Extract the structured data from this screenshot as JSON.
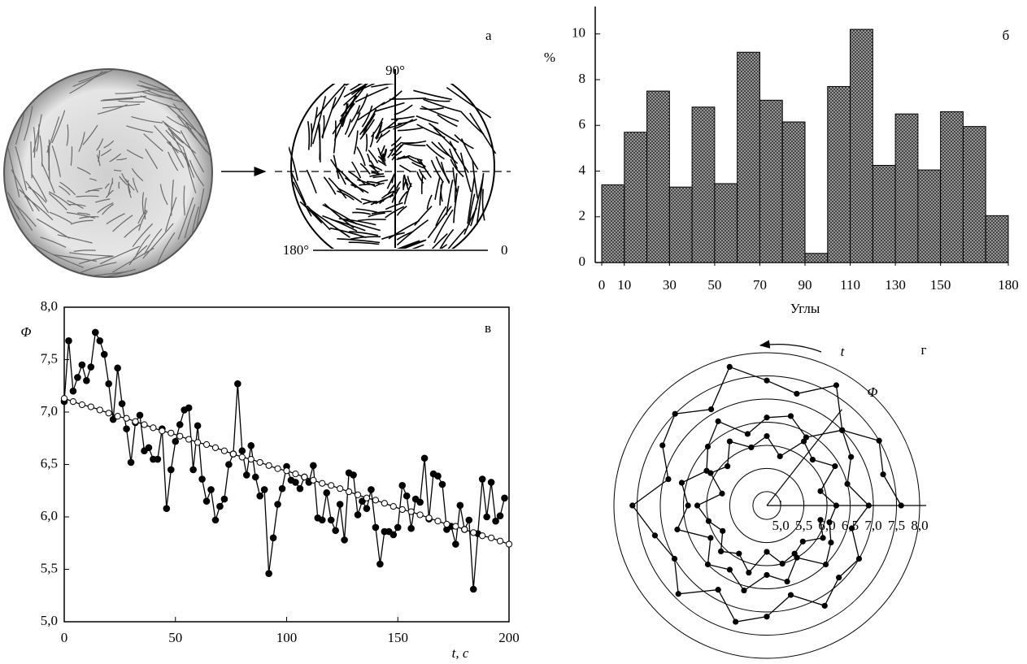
{
  "panel_a": {
    "label": "а",
    "angle_90": "90°",
    "angle_180": "180°",
    "angle_0": "0"
  },
  "chart_data": [
    {
      "type": "histogram",
      "label": "б",
      "ylabel": "%",
      "xlabel": "Углы",
      "bins": [
        0,
        10,
        20,
        30,
        40,
        50,
        60,
        70,
        80,
        90,
        100,
        110,
        120,
        130,
        140,
        150,
        160,
        170,
        180
      ],
      "values": [
        3.4,
        5.7,
        7.5,
        3.3,
        6.8,
        3.45,
        9.2,
        7.1,
        6.15,
        0.4,
        7.7,
        10.2,
        4.25,
        6.5,
        4.05,
        6.6,
        5.95,
        2.05
      ],
      "color": "#a8a8a8",
      "xlim": [
        0,
        180
      ],
      "ylim": [
        0,
        11.2
      ],
      "xticks": [
        0,
        10,
        30,
        50,
        70,
        90,
        110,
        130,
        150,
        180
      ],
      "yticks": [
        0,
        2,
        4,
        6,
        8,
        10
      ]
    },
    {
      "type": "line",
      "label": "в",
      "ylabel": "Φ",
      "xlabel": "t, c",
      "xlim": [
        0,
        200
      ],
      "ylim": [
        5,
        8
      ],
      "xticks": [
        0,
        50,
        100,
        150,
        200
      ],
      "yticks": [
        {
          "value": 5,
          "label": "5,0"
        },
        {
          "value": 5.5,
          "label": "5,5"
        },
        {
          "value": 6,
          "label": "6,0"
        },
        {
          "value": 6.5,
          "label": "6,5"
        },
        {
          "value": 7,
          "label": "7,0"
        },
        {
          "value": 7.5,
          "label": "7,5"
        },
        {
          "value": 8,
          "label": "8,0"
        }
      ],
      "series": [
        {
          "color": "#000000",
          "marker": "filled",
          "x": [
            0,
            2,
            4,
            6,
            8,
            10,
            12,
            14,
            16,
            18,
            20,
            22,
            24,
            26,
            28,
            30,
            32,
            34,
            36,
            38,
            40,
            42,
            44,
            46,
            48,
            50,
            52,
            54,
            56,
            58,
            60,
            62,
            64,
            66,
            68,
            70,
            72,
            74,
            76,
            78,
            80,
            82,
            84,
            86,
            88,
            90,
            92,
            94,
            96,
            98,
            100,
            102,
            104,
            106,
            108,
            110,
            112,
            114,
            116,
            118,
            120,
            122,
            124,
            126,
            128,
            130,
            132,
            134,
            136,
            138,
            140,
            142,
            144,
            146,
            148,
            150,
            152,
            154,
            156,
            158,
            160,
            162,
            164,
            166,
            168,
            170,
            172,
            174,
            176,
            178,
            180,
            182,
            184,
            186,
            188,
            190,
            192,
            194,
            196,
            198
          ],
          "values": [
            7.1,
            7.68,
            7.2,
            7.33,
            7.45,
            7.3,
            7.43,
            7.76,
            7.68,
            7.55,
            7.27,
            6.93,
            7.42,
            7.08,
            6.84,
            6.52,
            6.9,
            6.97,
            6.63,
            6.66,
            6.55,
            6.55,
            6.84,
            6.08,
            6.45,
            6.72,
            6.88,
            7.02,
            7.04,
            6.45,
            6.87,
            6.36,
            6.15,
            6.26,
            5.97,
            6.1,
            6.17,
            6.5,
            6.6,
            7.27,
            6.63,
            6.4,
            6.68,
            6.38,
            6.2,
            6.26,
            5.46,
            5.8,
            6.12,
            6.27,
            6.48,
            6.35,
            6.33,
            6.27,
            6.38,
            6.33,
            6.49,
            5.99,
            5.97,
            6.23,
            5.97,
            5.87,
            6.12,
            5.78,
            6.42,
            6.4,
            6.02,
            6.15,
            6.08,
            6.26,
            5.9,
            5.55,
            5.86,
            5.86,
            5.83,
            5.9,
            6.3,
            6.2,
            5.89,
            6.17,
            6.14,
            6.56,
            5.98,
            6.41,
            6.39,
            6.31,
            5.88,
            5.91,
            5.74,
            6.11,
            5.88,
            5.97,
            5.31,
            5.84,
            6.36,
            6.0,
            6.33,
            5.96,
            6.01,
            6.18
          ]
        },
        {
          "color": "#000000",
          "marker": "open",
          "x": [
            0,
            4,
            8,
            12,
            16,
            20,
            24,
            28,
            32,
            36,
            40,
            44,
            48,
            52,
            56,
            60,
            64,
            68,
            72,
            76,
            80,
            84,
            88,
            92,
            96,
            100,
            104,
            108,
            112,
            116,
            120,
            124,
            128,
            132,
            136,
            140,
            144,
            148,
            152,
            156,
            160,
            164,
            168,
            172,
            176,
            180,
            184,
            188,
            192,
            196,
            200
          ],
          "values": [
            7.13,
            7.1,
            7.07,
            7.05,
            7.02,
            6.99,
            6.96,
            6.94,
            6.91,
            6.88,
            6.85,
            6.82,
            6.8,
            6.77,
            6.74,
            6.71,
            6.69,
            6.66,
            6.63,
            6.6,
            6.57,
            6.55,
            6.52,
            6.49,
            6.46,
            6.44,
            6.41,
            6.38,
            6.35,
            6.32,
            6.3,
            6.27,
            6.24,
            6.21,
            6.18,
            6.16,
            6.13,
            6.1,
            6.07,
            6.05,
            6.02,
            5.99,
            5.96,
            5.93,
            5.91,
            5.88,
            5.85,
            5.82,
            5.8,
            5.77,
            5.74
          ]
        }
      ]
    },
    {
      "type": "polar",
      "label": "г",
      "theta_label": "t",
      "r_label": "Φ",
      "color": "#000000",
      "rlim": [
        4.7,
        8.0
      ],
      "rticks": [
        {
          "value": 5,
          "label": "5,0"
        },
        {
          "value": 5.5,
          "label": "5,5"
        },
        {
          "value": 6,
          "label": "6,0"
        },
        {
          "value": 6.5,
          "label": "6,5"
        },
        {
          "value": 7,
          "label": "7,0"
        },
        {
          "value": 7.5,
          "label": "7,5"
        },
        {
          "value": 8,
          "label": "8,0"
        }
      ],
      "theta": [
        0,
        15,
        30,
        45,
        60,
        75,
        90,
        105,
        120,
        135,
        150,
        165,
        180,
        195,
        210,
        225,
        240,
        255,
        270,
        285,
        300,
        315,
        330,
        345,
        360,
        375,
        390,
        405,
        420,
        435,
        450,
        465,
        480,
        495,
        510,
        525,
        540,
        555,
        570,
        585,
        600,
        615,
        630,
        645,
        660,
        675,
        690,
        705,
        720,
        735,
        750,
        765,
        780,
        795,
        810,
        825,
        840,
        855,
        870,
        885,
        900,
        915,
        930,
        945,
        960,
        975,
        990,
        1005,
        1020,
        1035,
        1050,
        1065
      ],
      "values": [
        7.6,
        7.3,
        7.5,
        7.0,
        7.7,
        7.2,
        7.4,
        7.8,
        7.1,
        7.5,
        7.3,
        6.9,
        7.6,
        7.2,
        7.0,
        7.4,
        6.8,
        7.3,
        7.1,
        6.7,
        7.2,
        6.9,
        7.0,
        6.6,
        6.9,
        6.5,
        6.8,
        7.0,
        6.4,
        6.7,
        6.6,
        6.3,
        6.8,
        6.5,
        6.2,
        6.6,
        6.4,
        6.7,
        6.1,
        6.5,
        6.3,
        6.6,
        6.2,
        6.4,
        6.0,
        6.5,
        6.3,
        6.1,
        6.2,
        5.9,
        6.4,
        6.1,
        6.3,
        5.8,
        6.2,
        6.0,
        6.3,
        5.9,
        6.1,
        5.7,
        6.2,
        6.0,
        5.8,
        6.1,
        5.9,
        6.2,
        5.7,
        6.0,
        5.9,
        5.8,
        6.1,
        5.9
      ]
    }
  ]
}
